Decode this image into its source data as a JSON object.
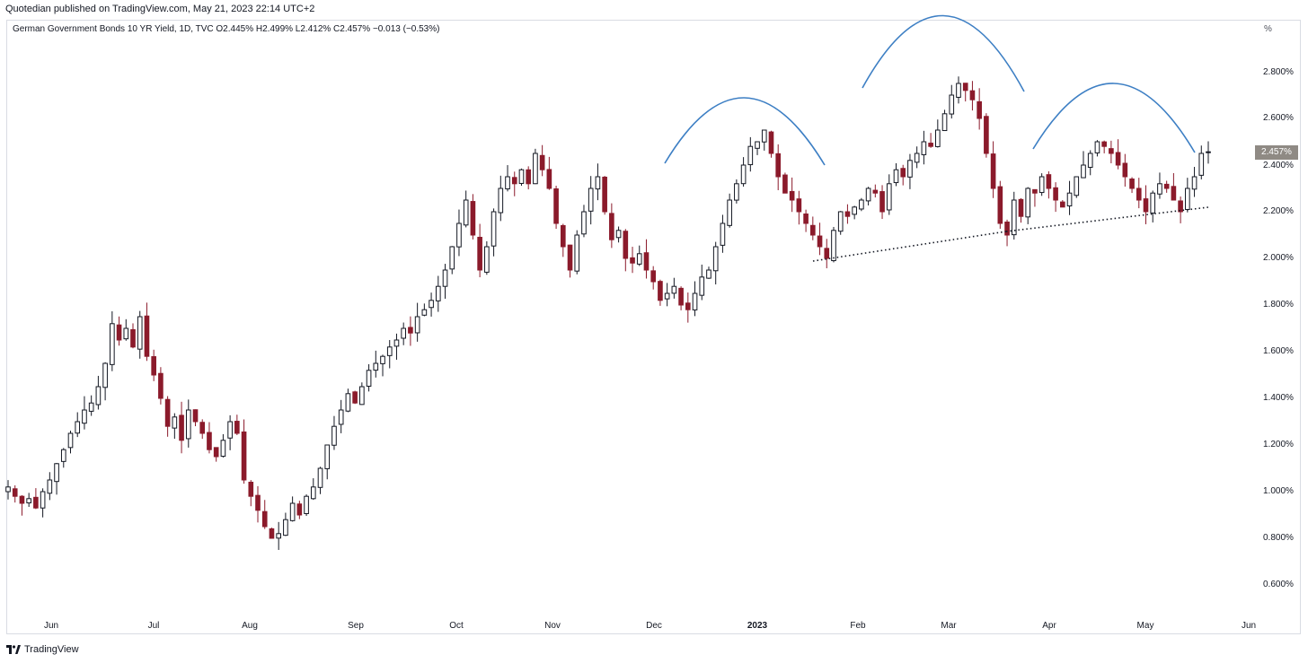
{
  "header": {
    "published": "Quotedian published on TradingView.com, May 21, 2023 22:14 UTC+2"
  },
  "legend": {
    "text": "German Government Bonds 10 YR Yield, 1D, TVC  O2.445%  H2.499%  L2.412%  C2.457%  −0.013 (−0.53%)"
  },
  "unit_label": "%",
  "last_price_label": "2.457%",
  "footer": {
    "brand": "TradingView"
  },
  "colors": {
    "up_body": "#ffffff",
    "down_body": "#8b1a2b",
    "wick": "#131722",
    "arc": "#3d7fc4",
    "trendline": "#131722",
    "badge": "#8f8a84"
  },
  "chart_data": {
    "type": "candlestick",
    "title": "German Government Bonds 10 YR Yield, 1D, TVC",
    "ylabel": "%",
    "ylim": [
      0.5,
      3.0
    ],
    "y_ticks": [
      "2.800%",
      "2.600%",
      "2.400%",
      "2.200%",
      "2.000%",
      "1.800%",
      "1.600%",
      "1.400%",
      "1.200%",
      "1.000%",
      "0.800%",
      "0.600%"
    ],
    "x_ticks": [
      "Jun",
      "Jul",
      "Aug",
      "Sep",
      "Oct",
      "Nov",
      "Dec",
      "2023",
      "Feb",
      "Mar",
      "Apr",
      "May",
      "Jun"
    ],
    "x_tick_bold": "2023",
    "last_ohlc": {
      "open": 2.445,
      "high": 2.499,
      "low": 2.412,
      "close": 2.457,
      "change": -0.013,
      "change_pct": -0.53
    },
    "closes": [
      1.02,
      0.98,
      0.95,
      0.97,
      0.93,
      1.0,
      1.05,
      1.12,
      1.18,
      1.25,
      1.3,
      1.35,
      1.38,
      1.45,
      1.55,
      1.72,
      1.65,
      1.7,
      1.62,
      1.75,
      1.58,
      1.5,
      1.4,
      1.28,
      1.32,
      1.22,
      1.35,
      1.3,
      1.25,
      1.18,
      1.15,
      1.22,
      1.3,
      1.25,
      1.05,
      0.98,
      0.92,
      0.85,
      0.8,
      0.82,
      0.88,
      0.95,
      0.9,
      0.98,
      1.02,
      1.1,
      1.2,
      1.28,
      1.35,
      1.42,
      1.38,
      1.45,
      1.52,
      1.55,
      1.58,
      1.62,
      1.65,
      1.7,
      1.68,
      1.75,
      1.78,
      1.82,
      1.88,
      1.95,
      2.05,
      2.15,
      2.25,
      2.1,
      1.95,
      2.05,
      2.2,
      2.3,
      2.35,
      2.32,
      2.38,
      2.32,
      2.45,
      2.38,
      2.3,
      2.15,
      2.05,
      1.95,
      2.1,
      2.2,
      2.3,
      2.35,
      2.2,
      2.08,
      2.12,
      2.0,
      1.98,
      2.02,
      1.95,
      1.9,
      1.82,
      1.85,
      1.88,
      1.8,
      1.78,
      1.85,
      1.92,
      1.95,
      2.05,
      2.15,
      2.25,
      2.32,
      2.4,
      2.48,
      2.5,
      2.55,
      2.45,
      2.35,
      2.28,
      2.25,
      2.2,
      2.15,
      2.1,
      2.05,
      2.0,
      2.12,
      2.2,
      2.18,
      2.22,
      2.25,
      2.3,
      2.28,
      2.2,
      2.32,
      2.38,
      2.35,
      2.42,
      2.45,
      2.5,
      2.48,
      2.55,
      2.62,
      2.7,
      2.75,
      2.72,
      2.68,
      2.6,
      2.45,
      2.3,
      2.15,
      2.1,
      2.25,
      2.18,
      2.3,
      2.28,
      2.35,
      2.3,
      2.25,
      2.22,
      2.28,
      2.35,
      2.4,
      2.45,
      2.5,
      2.48,
      2.45,
      2.4,
      2.35,
      2.3,
      2.25,
      2.2,
      2.28,
      2.32,
      2.3,
      2.25,
      2.2,
      2.3,
      2.35,
      2.45,
      2.457
    ],
    "annotations": [
      "arc-1",
      "arc-2",
      "arc-3",
      "dotted-trendline-1",
      "dotted-trendline-2"
    ]
  }
}
